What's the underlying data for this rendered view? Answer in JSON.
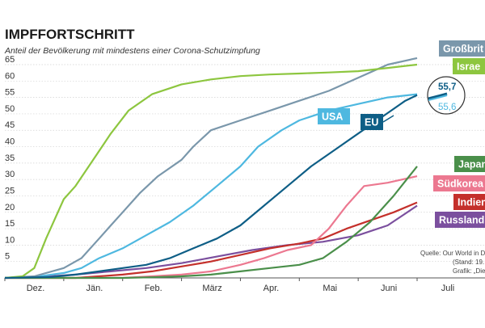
{
  "chart_data": {
    "type": "line",
    "title": "IMPFFORTSCHRITT",
    "subtitle": "Anteil der Bevölkerung mit mindestens einer Corona-Schutzimpfung",
    "xlabel": "",
    "ylabel": "",
    "ylim": [
      0,
      65
    ],
    "x_ticks": [
      "Dez.",
      "Jän.",
      "Feb.",
      "März",
      "Apr.",
      "Mai",
      "Juni",
      "Juli"
    ],
    "y_ticks": [
      5,
      10,
      15,
      20,
      25,
      30,
      35,
      40,
      45,
      50,
      55,
      60,
      65
    ],
    "grid": true,
    "series": [
      {
        "name": "Großbritannien",
        "label": "Großbrit",
        "color": "#7a97ab",
        "points": [
          [
            0,
            0
          ],
          [
            0.5,
            0.5
          ],
          [
            1,
            3
          ],
          [
            1.3,
            6
          ],
          [
            1.6,
            12
          ],
          [
            1.8,
            16
          ],
          [
            2,
            20
          ],
          [
            2.3,
            26
          ],
          [
            2.6,
            31
          ],
          [
            3,
            36
          ],
          [
            3.2,
            40
          ],
          [
            3.5,
            45
          ],
          [
            4,
            48
          ],
          [
            4.5,
            51
          ],
          [
            5,
            54
          ],
          [
            5.5,
            57
          ],
          [
            6,
            61
          ],
          [
            6.5,
            65
          ],
          [
            7,
            67
          ]
        ]
      },
      {
        "name": "Israel",
        "label": "Israe",
        "color": "#8dc63f",
        "points": [
          [
            0,
            0
          ],
          [
            0.3,
            0.5
          ],
          [
            0.5,
            3
          ],
          [
            0.7,
            12
          ],
          [
            0.85,
            18
          ],
          [
            1,
            24
          ],
          [
            1.2,
            28
          ],
          [
            1.5,
            36
          ],
          [
            1.8,
            44
          ],
          [
            2.1,
            51
          ],
          [
            2.5,
            56
          ],
          [
            3,
            59
          ],
          [
            3.5,
            60.5
          ],
          [
            4,
            61.5
          ],
          [
            4.5,
            62
          ],
          [
            5,
            62.3
          ],
          [
            5.5,
            62.6
          ],
          [
            6,
            63
          ],
          [
            6.5,
            64
          ],
          [
            7,
            65
          ]
        ]
      },
      {
        "name": "USA",
        "label": "USA",
        "color": "#4eb8e0",
        "points": [
          [
            0,
            0
          ],
          [
            0.5,
            0.3
          ],
          [
            1,
            1.5
          ],
          [
            1.3,
            3
          ],
          [
            1.6,
            6
          ],
          [
            2,
            9
          ],
          [
            2.4,
            13
          ],
          [
            2.8,
            17
          ],
          [
            3.2,
            22
          ],
          [
            3.6,
            28
          ],
          [
            4,
            34
          ],
          [
            4.3,
            40
          ],
          [
            4.7,
            45
          ],
          [
            5,
            48
          ],
          [
            5.5,
            51
          ],
          [
            6,
            53
          ],
          [
            6.5,
            55
          ],
          [
            7,
            56
          ]
        ]
      },
      {
        "name": "EU",
        "label": "EU",
        "color": "#0e5e86",
        "points": [
          [
            0,
            0
          ],
          [
            0.8,
            0.3
          ],
          [
            1.2,
            1
          ],
          [
            1.6,
            2
          ],
          [
            2,
            3
          ],
          [
            2.4,
            4
          ],
          [
            2.8,
            6
          ],
          [
            3.2,
            9
          ],
          [
            3.6,
            12
          ],
          [
            4,
            16
          ],
          [
            4.4,
            22
          ],
          [
            4.8,
            28
          ],
          [
            5.2,
            34
          ],
          [
            5.6,
            39
          ],
          [
            6,
            44
          ],
          [
            6.4,
            49
          ],
          [
            6.8,
            54
          ],
          [
            7,
            55.7
          ]
        ]
      },
      {
        "name": "Japan",
        "label": "Japan",
        "color": "#4a8f4a",
        "points": [
          [
            0,
            0
          ],
          [
            2,
            0
          ],
          [
            2.5,
            0.2
          ],
          [
            3,
            0.5
          ],
          [
            3.5,
            1
          ],
          [
            4,
            2
          ],
          [
            4.5,
            3
          ],
          [
            5,
            4
          ],
          [
            5.4,
            6
          ],
          [
            5.8,
            11
          ],
          [
            6.2,
            17
          ],
          [
            6.6,
            25
          ],
          [
            7,
            34
          ]
        ]
      },
      {
        "name": "Südkorea",
        "label": "Südkorea",
        "color": "#ec7890",
        "points": [
          [
            0,
            0
          ],
          [
            2,
            0
          ],
          [
            2.5,
            0.5
          ],
          [
            3,
            1
          ],
          [
            3.5,
            2
          ],
          [
            4,
            4
          ],
          [
            4.4,
            6
          ],
          [
            4.8,
            8.5
          ],
          [
            5.2,
            10
          ],
          [
            5.5,
            15
          ],
          [
            5.8,
            22
          ],
          [
            6.1,
            28
          ],
          [
            6.5,
            29
          ],
          [
            7,
            31
          ]
        ]
      },
      {
        "name": "Indien",
        "label": "Indien",
        "color": "#c4302b",
        "points": [
          [
            0,
            0
          ],
          [
            1.2,
            0
          ],
          [
            1.6,
            0.5
          ],
          [
            2,
            1
          ],
          [
            2.5,
            2
          ],
          [
            3,
            3.5
          ],
          [
            3.5,
            5
          ],
          [
            4,
            7
          ],
          [
            4.5,
            9
          ],
          [
            5,
            10.5
          ],
          [
            5.4,
            12
          ],
          [
            5.8,
            15
          ],
          [
            6.2,
            17.5
          ],
          [
            6.6,
            20
          ],
          [
            7,
            23
          ]
        ]
      },
      {
        "name": "Russland",
        "label": "Russland",
        "color": "#7b4f9e",
        "points": [
          [
            0,
            0
          ],
          [
            0.6,
            0.3
          ],
          [
            1.2,
            1
          ],
          [
            1.8,
            2
          ],
          [
            2.4,
            3
          ],
          [
            3,
            4.5
          ],
          [
            3.6,
            6.5
          ],
          [
            4.2,
            8.5
          ],
          [
            4.8,
            10
          ],
          [
            5.4,
            11
          ],
          [
            6,
            13
          ],
          [
            6.5,
            16
          ],
          [
            7,
            22
          ]
        ]
      }
    ],
    "annotations": [
      {
        "text": "55,7",
        "color": "#0e5e86"
      },
      {
        "text": "55,6",
        "color": "#4eb8e0"
      }
    ],
    "source_lines": [
      "Quelle: Our World in Da",
      "(Stand: 19.",
      "Grafik: „Die Presse“ · N"
    ]
  }
}
